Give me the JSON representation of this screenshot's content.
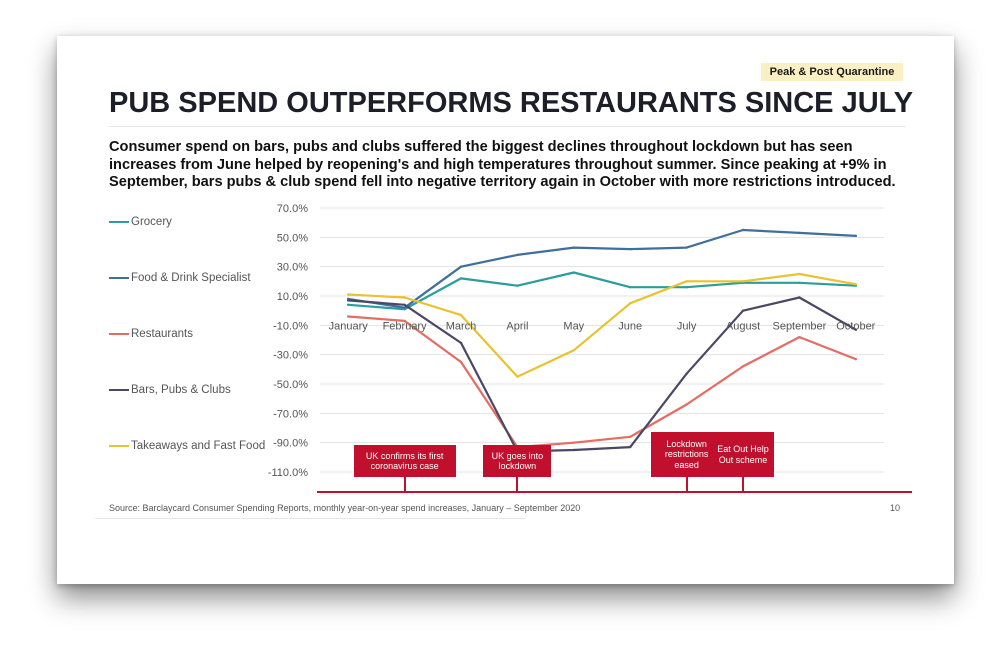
{
  "badge": "Peak & Post Quarantine",
  "title": "PUB SPEND OUTPERFORMS RESTAURANTS SINCE JULY",
  "subtitle": "Consumer spend on bars, pubs and clubs suffered the biggest declines throughout lockdown but has seen increases from June helped by reopening's and high temperatures throughout summer.  Since peaking at +9% in September, bars pubs & club spend fell into negative territory again in October with more restrictions introduced.",
  "source": "Source: Barclaycard Consumer Spending Reports, monthly year-on-year spend increases, January – September 2020",
  "page_number": "10",
  "annotations": [
    {
      "label": "UK confirms its first coronavirus case",
      "month": "February"
    },
    {
      "label": "UK goes into lockdown",
      "month": "April"
    },
    {
      "label": "Lockdown restrictions eased",
      "month": "July"
    },
    {
      "label": "Eat Out Help Out scheme",
      "month": "August"
    }
  ],
  "colors": {
    "accent": "#c0102e"
  },
  "chart_data": {
    "type": "line",
    "categories": [
      "January",
      "February",
      "March",
      "April",
      "May",
      "June",
      "July",
      "August",
      "September",
      "October"
    ],
    "yticks": [
      "70.0%",
      "50.0%",
      "30.0%",
      "10.0%",
      "-10.0%",
      "-30.0%",
      "-50.0%",
      "-70.0%",
      "-90.0%",
      "-110.0%"
    ],
    "ylim": [
      -110,
      70
    ],
    "grid": true,
    "legend_position": "left",
    "series": [
      {
        "name": "Grocery",
        "color": "#2a9d9c",
        "values": [
          4,
          1,
          22,
          17,
          26,
          16,
          16,
          19,
          19,
          17
        ]
      },
      {
        "name": "Food & Drink Specialist",
        "color": "#3f6f9a",
        "values": [
          8,
          2,
          30,
          38,
          43,
          42,
          43,
          55,
          53,
          51
        ]
      },
      {
        "name": "Restaurants",
        "color": "#e56b63",
        "values": [
          -4,
          -7,
          -35,
          -93,
          -90,
          -86,
          -64,
          -38,
          -18,
          -33
        ]
      },
      {
        "name": "Bars, Pubs & Clubs",
        "color": "#4b4764",
        "values": [
          7,
          4,
          -22,
          -96,
          -95,
          -93,
          -43,
          0,
          9,
          -13
        ]
      },
      {
        "name": "Takeaways and Fast Food",
        "color": "#e9c22f",
        "values": [
          11,
          9,
          -3,
          -45,
          -27,
          5,
          20,
          20,
          25,
          18
        ]
      }
    ]
  }
}
